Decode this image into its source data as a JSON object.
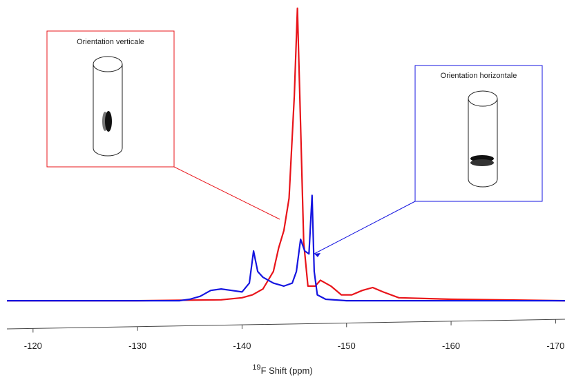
{
  "chart_data": {
    "type": "line",
    "xlabel_sup": "19",
    "xlabel": "F Shift (ppm)",
    "annotations": [
      "Orientation verticale",
      "Orientation  horizontale"
    ],
    "xlim": [
      -117.5,
      -170.9
    ],
    "ylim": [
      -8,
      100
    ],
    "xticks": [
      -120,
      -130,
      -140,
      -150,
      -160,
      -170
    ],
    "series": [
      {
        "color": "#e8141a",
        "x": [
          -117.5,
          -130,
          -138,
          -140,
          -141,
          -142,
          -143,
          -143.5,
          -144,
          -144.5,
          -145,
          -145.3,
          -145.6,
          -145.9,
          -146.3,
          -147,
          -147.5,
          -148.5,
          -149.5,
          -150.5,
          -151.5,
          -152.5,
          -153.5,
          -155,
          -160,
          -170.9
        ],
        "values": [
          0,
          0,
          0.3,
          1,
          2,
          4,
          10,
          18,
          24,
          35,
          70,
          100,
          60,
          20,
          5,
          5,
          7,
          5,
          2,
          2,
          3.5,
          4.5,
          3,
          1,
          0.5,
          0
        ]
      },
      {
        "color": "#1515e0",
        "x": [
          -117.5,
          -134,
          -135,
          -136,
          -137,
          -138,
          -139,
          -140,
          -140.7,
          -141.1,
          -141.5,
          -142,
          -143,
          -144,
          -144.8,
          -145.2,
          -145.6,
          -146,
          -146.4,
          -146.7,
          -146.9,
          -147.2,
          -148,
          -150,
          -170.9
        ],
        "values": [
          0,
          0,
          0.5,
          1.5,
          3.5,
          4,
          3.5,
          3,
          6,
          17,
          10,
          8,
          6,
          5,
          6,
          10,
          21,
          17,
          16,
          36,
          10,
          2,
          0.5,
          0,
          0
        ]
      }
    ]
  }
}
